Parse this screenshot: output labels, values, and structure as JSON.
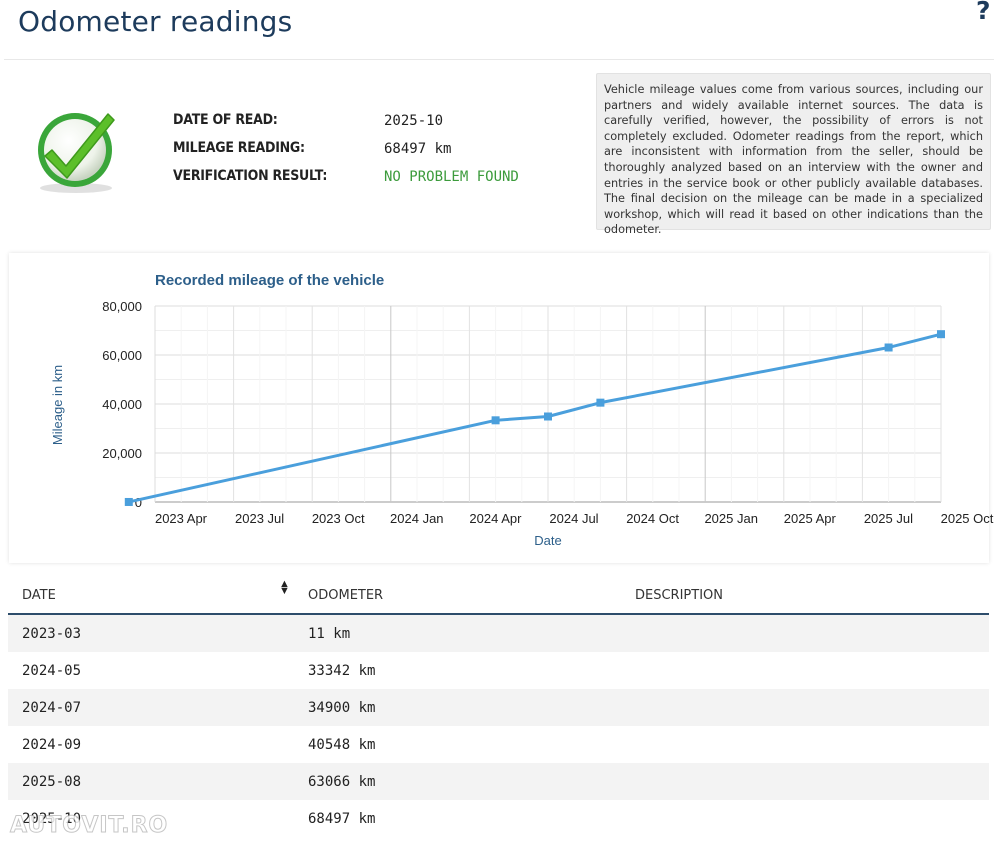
{
  "header": {
    "title": "Odometer readings",
    "help_label": "?"
  },
  "summary": {
    "status_icon": "green-checkmark-icon",
    "date_label": "DATE OF READ:",
    "date_value": "2025-10",
    "mileage_label": "MILEAGE READING:",
    "mileage_value": "68497 km",
    "verification_label": "VERIFICATION RESULT:",
    "verification_value": "NO PROBLEM FOUND",
    "ok_color": "#3c9b3c"
  },
  "notice": "Vehicle mileage values come from various sources, including our partners and widely available internet sources. The data is carefully verified, however, the possibility of errors is not completely excluded. Odometer readings from the report, which are inconsistent with information from the seller, should be thoroughly analyzed based on an interview with the owner and entries in the service book or other publicly available databases. The final decision on the mileage can be made in a specialized workshop, which will read it based on other indications than the odometer.",
  "chart_data": {
    "type": "line",
    "title": "Recorded mileage of the vehicle",
    "xlabel": "Date",
    "ylabel": "Mileage in km",
    "ylim": [
      0,
      80000
    ],
    "yticks": [
      "0",
      "20,000",
      "40,000",
      "60,000",
      "80,000"
    ],
    "xticks": [
      "2023 Apr",
      "2023 Jul",
      "2023 Oct",
      "2024 Jan",
      "2024 Apr",
      "2024 Jul",
      "2024 Oct",
      "2025 Jan",
      "2025 Apr",
      "2025 Jul",
      "2025 Oct"
    ],
    "grid": true,
    "series": [
      {
        "x": [
          "2023-03",
          "2024-05",
          "2024-07",
          "2024-09",
          "2025-08",
          "2025-10"
        ],
        "values": [
          11,
          33342,
          34900,
          40548,
          63066,
          68497
        ],
        "color": "#4a9fdc"
      }
    ]
  },
  "table": {
    "headers": {
      "date": "DATE",
      "odometer": "ODOMETER",
      "description": "DESCRIPTION"
    },
    "sort_icon": "sort-updown-icon",
    "rows": [
      {
        "date": "2023-03",
        "odometer": "11 km",
        "description": ""
      },
      {
        "date": "2024-05",
        "odometer": "33342 km",
        "description": ""
      },
      {
        "date": "2024-07",
        "odometer": "34900 km",
        "description": ""
      },
      {
        "date": "2024-09",
        "odometer": "40548 km",
        "description": ""
      },
      {
        "date": "2025-08",
        "odometer": "63066 km",
        "description": ""
      },
      {
        "date": "2025-10",
        "odometer": "68497 km",
        "description": ""
      }
    ]
  },
  "watermark": "AUTOVIT.RO",
  "colors": {
    "title": "#1d3b5c",
    "accent": "#2d4d6b",
    "line": "#4a9fdc"
  }
}
